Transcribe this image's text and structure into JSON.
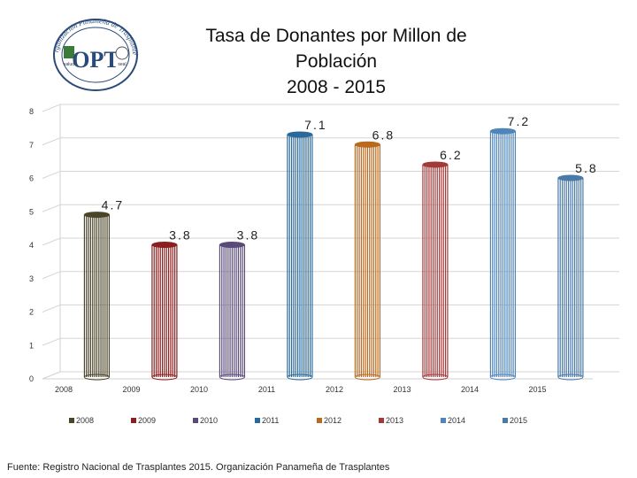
{
  "logo": {
    "ring_text": "Organización Panameña de Trasplantes",
    "center_text": "OPT",
    "left_mark": "salud",
    "right_mark": "seal"
  },
  "title_lines": [
    "Tasa de Donantes por Millon de",
    "Población",
    "2008 - 2015"
  ],
  "source": "Fuente: Registro Nacional de Trasplantes 2015.  Organización Panameña de Trasplantes",
  "chart_data": {
    "type": "bar",
    "title": "Tasa de Donantes por Millon de Población 2008 - 2015",
    "categories": [
      "2008",
      "2009",
      "2010",
      "2011",
      "2012",
      "2013",
      "2014",
      "2015"
    ],
    "values": [
      4.7,
      3.8,
      3.8,
      7.1,
      6.8,
      6.2,
      7.2,
      5.8
    ],
    "value_labels": [
      "4.7",
      "3.8",
      "3.8",
      "7.1",
      "6.8",
      "6.2",
      "7.2",
      "5.8"
    ],
    "colors": [
      "#4a4428",
      "#8b1e1e",
      "#5a4a7a",
      "#2a6a9a",
      "#b86a1e",
      "#a33a3a",
      "#4f86ba",
      "#4a7aa8"
    ],
    "legend": [
      "2008",
      "2009",
      "2010",
      "2011",
      "2012",
      "2013",
      "2014",
      "2015"
    ],
    "legend_position": "bottom",
    "ylim": [
      0,
      8
    ],
    "yticks": [
      0,
      1,
      2,
      3,
      4,
      5,
      6,
      7,
      8
    ],
    "xlabel": "",
    "ylabel": "",
    "grid": true
  }
}
